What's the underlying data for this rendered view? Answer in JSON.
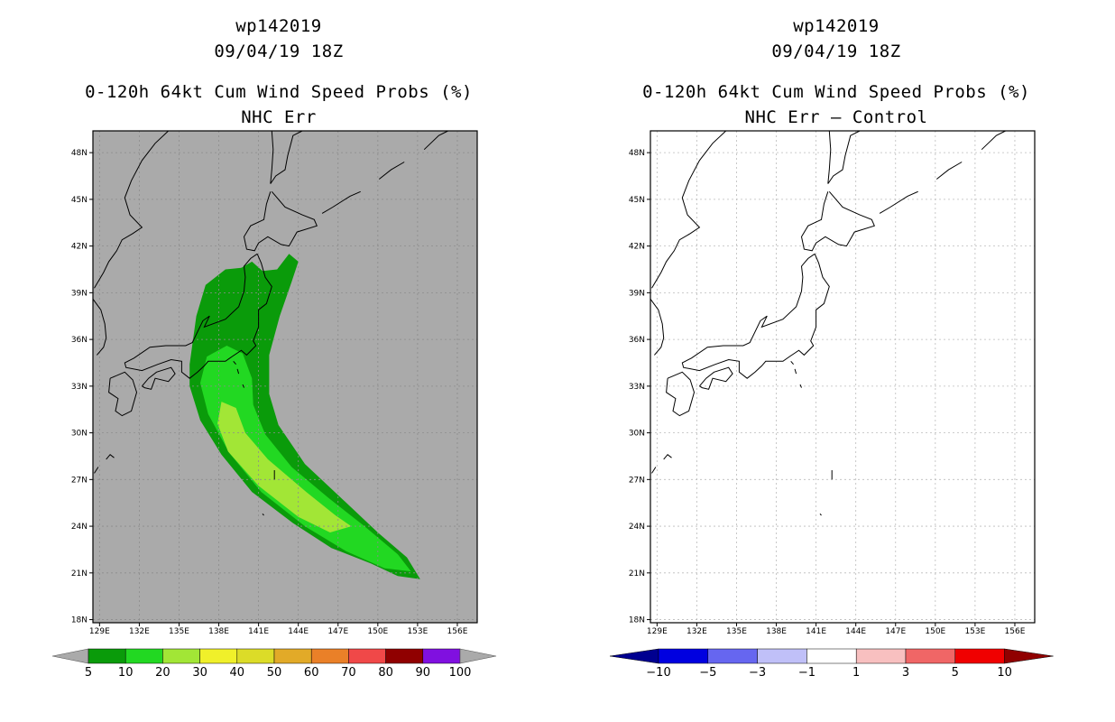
{
  "panels": [
    {
      "id": "left",
      "title_line1": "wp142019",
      "title_line2": "09/04/19 18Z",
      "title_line3": "0-120h 64kt Cum Wind Speed Probs (%)",
      "title_line4": "NHC Err",
      "background_color": "#aaaaaa",
      "colorbar": {
        "labels": [
          "5",
          "10",
          "20",
          "30",
          "40",
          "50",
          "60",
          "70",
          "80",
          "90",
          "100"
        ],
        "colors": [
          "#0a9b0a",
          "#22d822",
          "#a2e636",
          "#f0f02a",
          "#dcdc28",
          "#e2aa28",
          "#ea8028",
          "#f04848",
          "#900000",
          "#8010e0"
        ],
        "end_color": "#aaaaaa"
      }
    },
    {
      "id": "right",
      "title_line1": "wp142019",
      "title_line2": "09/04/19 18Z",
      "title_line3": "0-120h 64kt Cum Wind Speed Probs (%)",
      "title_line4": "NHC Err – Control",
      "background_color": "#ffffff",
      "colorbar": {
        "labels": [
          "−10",
          "−5",
          "−3",
          "−1",
          "1",
          "3",
          "5",
          "10"
        ],
        "colors": [
          "#0000e0",
          "#6666f0",
          "#c0c0f8",
          "#ffffff",
          "#f8c0c0",
          "#f06666",
          "#f00000"
        ],
        "end_left": "#000090",
        "end_right": "#900000"
      }
    }
  ],
  "map": {
    "lat_labels": [
      "48N",
      "45N",
      "42N",
      "39N",
      "36N",
      "33N",
      "30N",
      "27N",
      "24N",
      "21N",
      "18N"
    ],
    "lon_labels": [
      "129E",
      "132E",
      "135E",
      "138E",
      "141E",
      "144E",
      "147E",
      "150E",
      "153E",
      "156E"
    ],
    "lat_values": [
      48,
      45,
      42,
      39,
      36,
      33,
      30,
      27,
      24,
      21,
      18
    ],
    "lon_values": [
      129,
      132,
      135,
      138,
      141,
      144,
      147,
      150,
      153,
      156
    ],
    "lon_range": [
      128.5,
      157.5
    ],
    "lat_range": [
      17.8,
      49.4
    ]
  },
  "wind_prob_bands": [
    {
      "min_pct": 5,
      "color": "#0a9b0a"
    },
    {
      "min_pct": 10,
      "color": "#22d822"
    },
    {
      "min_pct": 20,
      "color": "#a2e636"
    }
  ]
}
